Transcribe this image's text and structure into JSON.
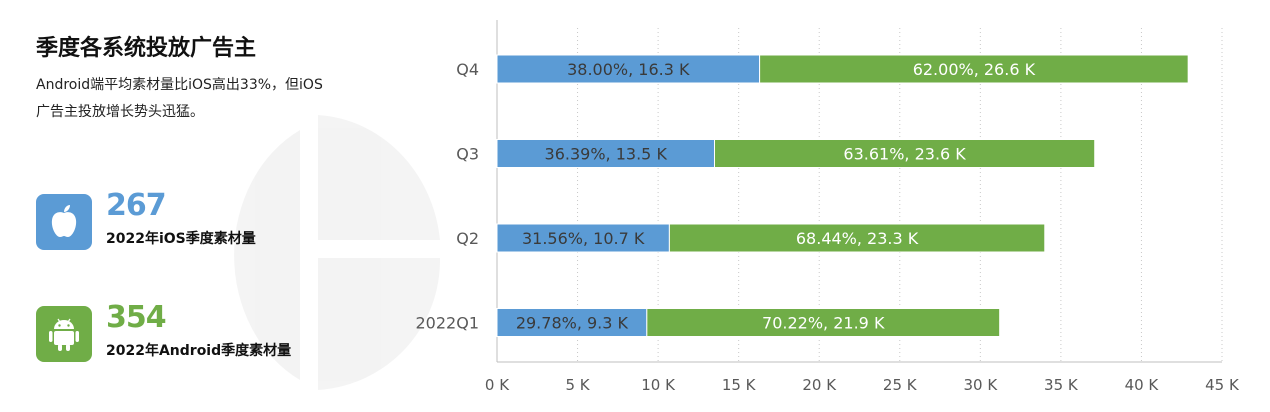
{
  "title": "季度各系统投放广告主",
  "subtitle": "Android端平均素材量比iOS高出33%，但iOS广告主投放增长势头迅猛。",
  "stats": [
    {
      "value": "267",
      "label": "2022年iOS季度素材量",
      "icon": "apple-icon",
      "color": "#5b9bd5"
    },
    {
      "value": "354",
      "label": "2022年Android季度素材量",
      "icon": "android-icon",
      "color": "#70ad47"
    }
  ],
  "chart_data": {
    "type": "bar",
    "orientation": "horizontal",
    "stacked": true,
    "categories": [
      "Q4",
      "Q3",
      "Q2",
      "2022Q1"
    ],
    "series": [
      {
        "values": [
          16.3,
          13.5,
          10.7,
          9.3
        ],
        "labels": [
          "38.00%, 16.3 K",
          "36.39%, 13.5 K",
          "31.56%, 10.7 K",
          "29.78%, 9.3 K"
        ],
        "color": "#5b9bd5"
      },
      {
        "values": [
          26.6,
          23.6,
          23.3,
          21.9
        ],
        "labels": [
          "62.00%, 26.6 K",
          "63.61%, 23.6 K",
          "68.44%, 23.3 K",
          "70.22%, 21.9 K"
        ],
        "color": "#70ad47"
      }
    ],
    "xlim": [
      0,
      45
    ],
    "xticks": [
      0,
      5,
      10,
      15,
      20,
      25,
      30,
      35,
      40,
      45
    ],
    "xtick_labels": [
      "0 K",
      "5 K",
      "10 K",
      "15 K",
      "20 K",
      "25 K",
      "30 K",
      "35 K",
      "40 K",
      "45 K"
    ],
    "grid": "vertical-dotted"
  }
}
